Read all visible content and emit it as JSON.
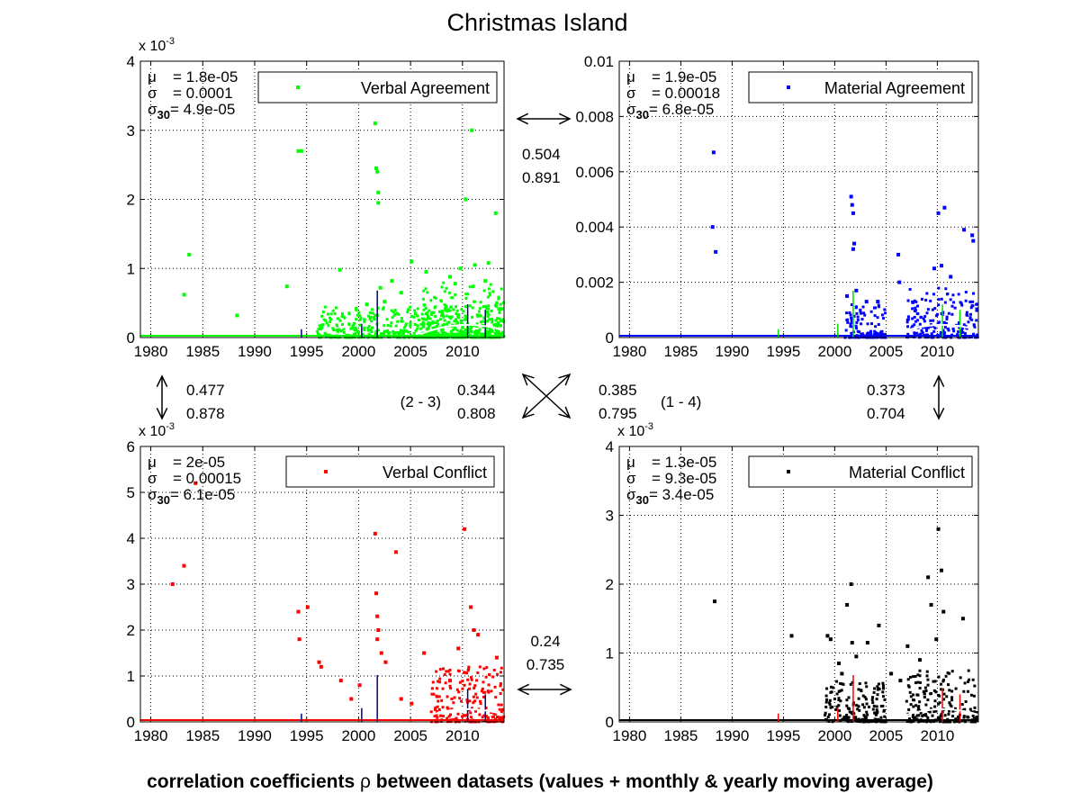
{
  "figure": {
    "title": "Christmas Island",
    "caption_before": "correlation coefficients ",
    "caption_symbol": "ρ",
    "caption_after": " between datasets (values + monthly & yearly moving average)"
  },
  "chart_data": [
    {
      "type": "scatter",
      "legend": "Verbal Agreement",
      "legend_position": "top-right",
      "color": "#00ff00",
      "grid": true,
      "xlim": [
        1979,
        2014
      ],
      "ylim": [
        0,
        0.004
      ],
      "xticks": [
        "1980",
        "1985",
        "1990",
        "1995",
        "2000",
        "2005",
        "2010"
      ],
      "yticks": [
        "0",
        "1",
        "2",
        "3",
        "4"
      ],
      "exponent_label": "x 10",
      "exponent": "-3",
      "stats": {
        "mu": "= 1.8e-05",
        "sigma": "= 0.0001",
        "sigma30": "= 4.9e-05"
      },
      "points": [
        [
          1983.2,
          0.00062
        ],
        [
          1983.7,
          0.0012
        ],
        [
          1988.3,
          0.00032
        ],
        [
          1993.1,
          0.00074
        ],
        [
          1994.2,
          0.0027
        ],
        [
          1994.5,
          0.0027
        ],
        [
          1998.2,
          0.00098
        ],
        [
          2001.6,
          0.0031
        ],
        [
          2001.7,
          0.00245
        ],
        [
          2001.8,
          0.0024
        ],
        [
          2001.9,
          0.0021
        ],
        [
          2001.9,
          0.00195
        ],
        [
          2002.1,
          0.00072
        ],
        [
          2003.2,
          0.00082
        ],
        [
          2005.1,
          0.0011
        ],
        [
          2006.5,
          0.00095
        ],
        [
          2008.8,
          0.00088
        ],
        [
          2009.8,
          0.001
        ],
        [
          2010.3,
          0.002
        ],
        [
          2010.9,
          0.003
        ],
        [
          2011.2,
          0.00105
        ],
        [
          2012.5,
          0.00108
        ],
        [
          2013.2,
          0.0018
        ],
        [
          2000.8,
          0.00048
        ],
        [
          2002.5,
          0.00052
        ],
        [
          2004.1,
          0.00065
        ],
        [
          2009.3,
          0.00078
        ],
        [
          2012.2,
          0.00082
        ]
      ],
      "dense_ranges": [
        [
          1996,
          2014,
          0.00045
        ],
        [
          2006,
          2014,
          0.0008
        ]
      ]
    },
    {
      "type": "scatter",
      "legend": "Material Agreement",
      "legend_position": "top-right",
      "color": "#0000ff",
      "grid": true,
      "xlim": [
        1979,
        2014
      ],
      "ylim": [
        0,
        0.01
      ],
      "xticks": [
        "1980",
        "1985",
        "1990",
        "1995",
        "2000",
        "2005",
        "2010"
      ],
      "yticks": [
        "0",
        "0.002",
        "0.004",
        "0.006",
        "0.008",
        "0.01"
      ],
      "exponent_label": "",
      "exponent": "",
      "stats": {
        "mu": "= 1.9e-05",
        "sigma": "= 0.00018",
        "sigma30": "= 6.8e-05"
      },
      "points": [
        [
          1988.2,
          0.0067
        ],
        [
          1988.1,
          0.004
        ],
        [
          1988.4,
          0.0031
        ],
        [
          2001.6,
          0.0051
        ],
        [
          2001.7,
          0.0048
        ],
        [
          2001.8,
          0.0045
        ],
        [
          2001.9,
          0.0034
        ],
        [
          2001.8,
          0.0032
        ],
        [
          2002.1,
          0.0017
        ],
        [
          2006.2,
          0.003
        ],
        [
          2006.3,
          0.002
        ],
        [
          2010.1,
          0.0045
        ],
        [
          2010.7,
          0.0047
        ],
        [
          2012.6,
          0.0039
        ],
        [
          2013.4,
          0.0037
        ],
        [
          2013.5,
          0.0035
        ],
        [
          2009.7,
          0.0025
        ],
        [
          2010.4,
          0.0026
        ],
        [
          2011.3,
          0.0022
        ],
        [
          2003.1,
          0.0013
        ],
        [
          2004.2,
          0.0013
        ],
        [
          2001.2,
          0.0015
        ]
      ],
      "dense_ranges": [
        [
          2001,
          2005,
          0.0012
        ],
        [
          2007,
          2014,
          0.0018
        ]
      ]
    },
    {
      "type": "scatter",
      "legend": "Verbal Conflict",
      "legend_position": "top-right",
      "color": "#ff0000",
      "grid": true,
      "xlim": [
        1979,
        2014
      ],
      "ylim": [
        0,
        0.006
      ],
      "xticks": [
        "1980",
        "1985",
        "1990",
        "1995",
        "2000",
        "2005",
        "2010"
      ],
      "yticks": [
        "0",
        "1",
        "2",
        "3",
        "4",
        "5",
        "6"
      ],
      "exponent_label": "x 10",
      "exponent": "-3",
      "stats": {
        "mu": "= 2e-05",
        "sigma": "= 0.00015",
        "sigma30": "= 6.1e-05"
      },
      "points": [
        [
          1982.1,
          0.003
        ],
        [
          1983.2,
          0.0034
        ],
        [
          1984.3,
          0.0052
        ],
        [
          1994.2,
          0.0024
        ],
        [
          1994.3,
          0.0018
        ],
        [
          1995.1,
          0.0025
        ],
        [
          1996.2,
          0.0013
        ],
        [
          1996.4,
          0.0012
        ],
        [
          1998.3,
          0.0009
        ],
        [
          1999.3,
          0.0005
        ],
        [
          2000.1,
          0.0008
        ],
        [
          2001.6,
          0.0041
        ],
        [
          2001.7,
          0.0028
        ],
        [
          2001.8,
          0.0023
        ],
        [
          2001.9,
          0.002
        ],
        [
          2001.8,
          0.0018
        ],
        [
          2002.2,
          0.0015
        ],
        [
          2003.6,
          0.0037
        ],
        [
          2002.6,
          0.0013
        ],
        [
          2004.1,
          0.0005
        ],
        [
          2005.1,
          0.0004
        ],
        [
          2006.3,
          0.0015
        ],
        [
          2008.8,
          0.0009
        ],
        [
          2010.2,
          0.0042
        ],
        [
          2010.8,
          0.0025
        ],
        [
          2011.1,
          0.002
        ],
        [
          2011.5,
          0.0019
        ],
        [
          2013.3,
          0.0014
        ],
        [
          2009.6,
          0.0016
        ]
      ],
      "dense_ranges": [
        [
          2007,
          2014,
          0.0012
        ]
      ]
    },
    {
      "type": "scatter",
      "legend": "Material Conflict",
      "legend_position": "top-right",
      "color": "#000000",
      "grid": true,
      "xlim": [
        1979,
        2014
      ],
      "ylim": [
        0,
        0.004
      ],
      "xticks": [
        "1980",
        "1985",
        "1990",
        "1995",
        "2000",
        "2005",
        "2010"
      ],
      "yticks": [
        "0",
        "1",
        "2",
        "3",
        "4"
      ],
      "exponent_label": "x 10",
      "exponent": "-3",
      "stats": {
        "mu": "= 1.3e-05",
        "sigma": "= 9.3e-05",
        "sigma30": "= 3.4e-05"
      },
      "points": [
        [
          1988.3,
          0.00175
        ],
        [
          1995.8,
          0.00125
        ],
        [
          1999.3,
          0.00125
        ],
        [
          1999.6,
          0.0012
        ],
        [
          2000.4,
          0.00085
        ],
        [
          2001.2,
          0.0017
        ],
        [
          2001.6,
          0.002
        ],
        [
          2001.7,
          0.00115
        ],
        [
          2002.1,
          0.00095
        ],
        [
          2003.2,
          0.00115
        ],
        [
          2004.3,
          0.0014
        ],
        [
          2007.1,
          0.0011
        ],
        [
          2009.1,
          0.0021
        ],
        [
          2009.4,
          0.0017
        ],
        [
          2010.1,
          0.0028
        ],
        [
          2010.4,
          0.0022
        ],
        [
          2010.6,
          0.0016
        ],
        [
          2012.5,
          0.0015
        ],
        [
          2009.9,
          0.0012
        ],
        [
          2008.3,
          0.0009
        ],
        [
          2005.5,
          0.0007
        ],
        [
          2006.4,
          0.0006
        ],
        [
          2000.7,
          0.0007
        ]
      ],
      "dense_ranges": [
        [
          1999,
          2005,
          0.0006
        ],
        [
          2007,
          2014,
          0.00075
        ]
      ]
    }
  ],
  "correlations": [
    {
      "label": "1-2",
      "rho": "0.504",
      "rho_avg": "0.891",
      "pair_label": ""
    },
    {
      "label": "1-3",
      "rho": "0.477",
      "rho_avg": "0.878",
      "pair_label": ""
    },
    {
      "label": "2-3",
      "rho": "0.344",
      "rho_avg": "0.808",
      "pair_label": "(2 - 3)"
    },
    {
      "label": "1-4",
      "rho": "0.385",
      "rho_avg": "0.795",
      "pair_label": "(1 - 4)"
    },
    {
      "label": "2-4",
      "rho": "0.373",
      "rho_avg": "0.704",
      "pair_label": ""
    },
    {
      "label": "3-4",
      "rho": "0.24",
      "rho_avg": "0.735",
      "pair_label": ""
    }
  ],
  "symbols": {
    "mu": "μ",
    "sigma": "σ",
    "sigma30_sub": "30"
  }
}
